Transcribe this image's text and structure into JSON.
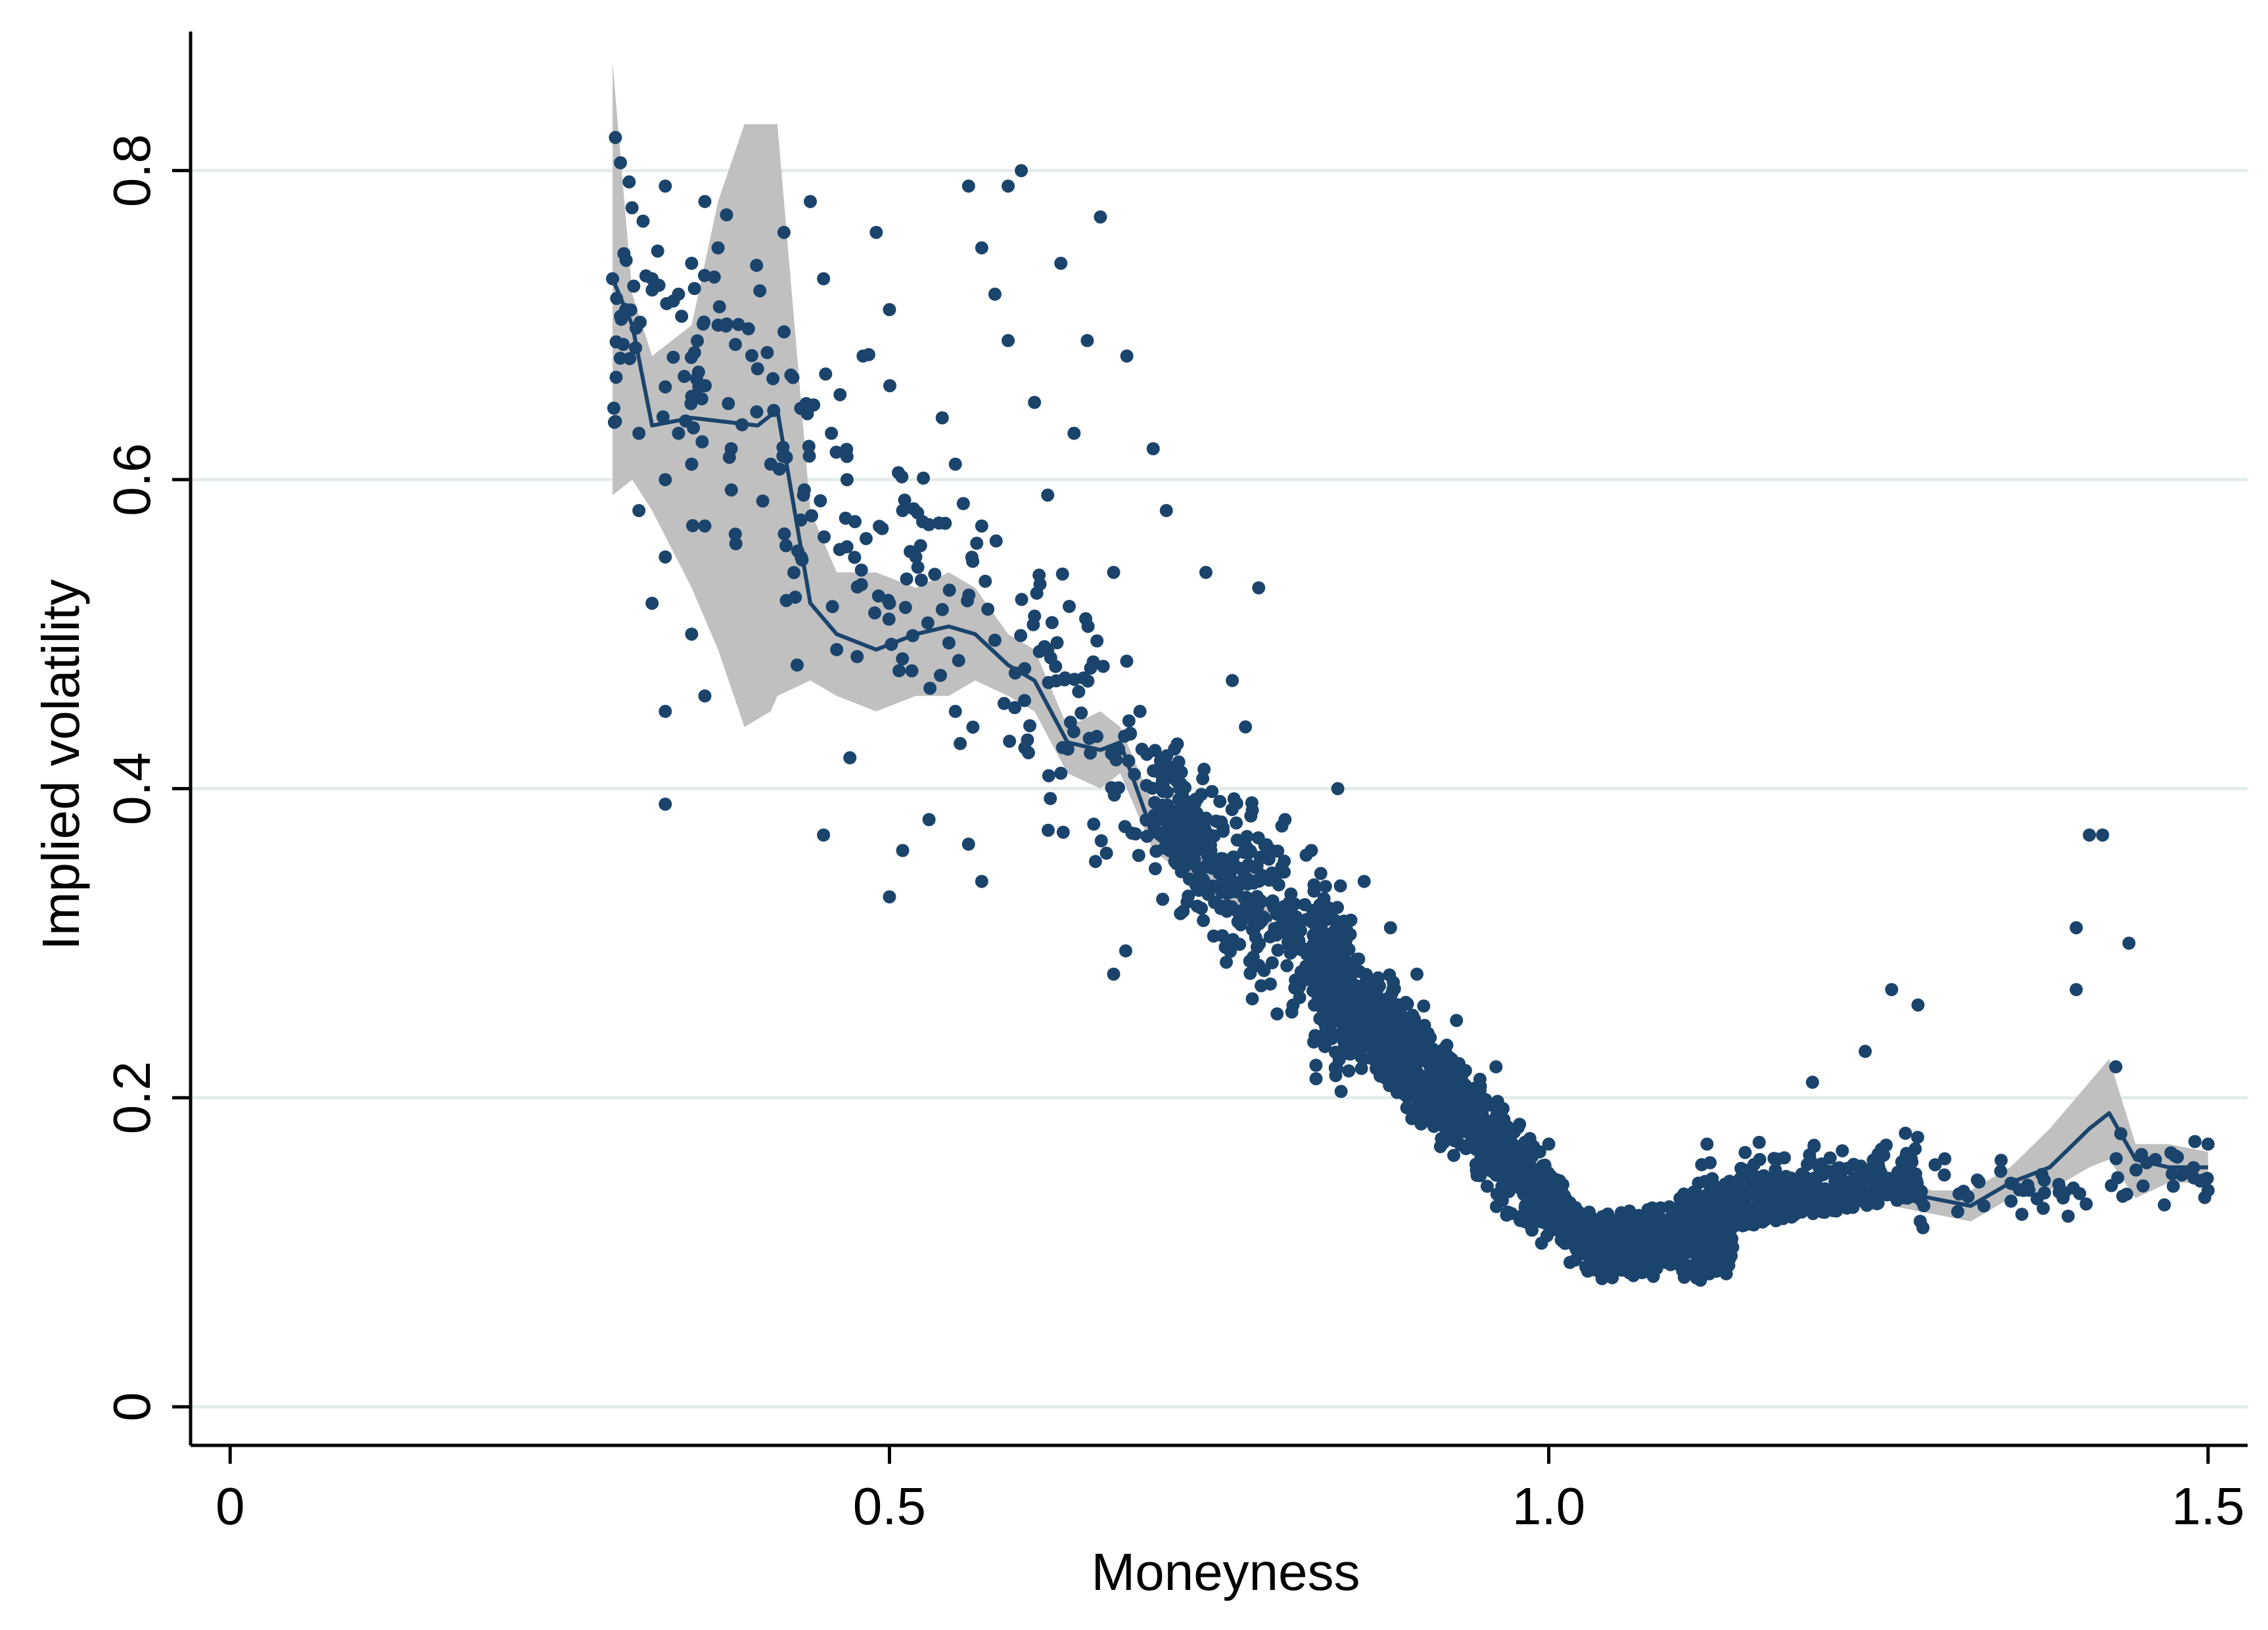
{
  "colors": {
    "points": "#1b446c",
    "line": "#1b446c",
    "band": "#c0c0c0",
    "grid": "#e3ece9",
    "axis": "#000000"
  },
  "chart_data": {
    "type": "scatter",
    "title": "",
    "xlabel": "Moneyness",
    "ylabel": "Implied volatility",
    "xlim": [
      -0.03,
      1.53
    ],
    "ylim": [
      -0.025,
      0.89
    ],
    "xticks": [
      {
        "value": 0,
        "label": "0"
      },
      {
        "value": 0.5,
        "label": "0.5"
      },
      {
        "value": 1.0,
        "label": "1.0"
      },
      {
        "value": 1.5,
        "label": "1.5"
      }
    ],
    "yticks": [
      {
        "value": 0,
        "label": "0"
      },
      {
        "value": 0.2,
        "label": "0.2"
      },
      {
        "value": 0.4,
        "label": "0.4"
      },
      {
        "value": 0.6,
        "label": "0.6"
      },
      {
        "value": 0.8,
        "label": "0.8"
      }
    ],
    "grid": "horizontal",
    "legend": "none",
    "series": [
      {
        "kind": "scatter",
        "description_x_range": [
          0.29,
          1.5
        ],
        "approx_point_count": 2200,
        "sample_points": [
          [
            0.29,
            0.73
          ],
          [
            0.3,
            0.71
          ],
          [
            0.31,
            0.63
          ],
          [
            0.31,
            0.58
          ],
          [
            0.32,
            0.73
          ],
          [
            0.32,
            0.52
          ],
          [
            0.33,
            0.79
          ],
          [
            0.33,
            0.66
          ],
          [
            0.33,
            0.6
          ],
          [
            0.33,
            0.55
          ],
          [
            0.33,
            0.45
          ],
          [
            0.33,
            0.39
          ],
          [
            0.34,
            0.72
          ],
          [
            0.34,
            0.63
          ],
          [
            0.35,
            0.5
          ],
          [
            0.35,
            0.74
          ],
          [
            0.35,
            0.61
          ],
          [
            0.36,
            0.78
          ],
          [
            0.36,
            0.57
          ],
          [
            0.36,
            0.46
          ],
          [
            0.37,
            0.75
          ],
          [
            0.37,
            0.7
          ],
          [
            0.38,
            0.62
          ],
          [
            0.41,
            0.61
          ],
          [
            0.42,
            0.76
          ],
          [
            0.43,
            0.48
          ],
          [
            0.44,
            0.78
          ],
          [
            0.45,
            0.73
          ],
          [
            0.45,
            0.37
          ],
          [
            0.46,
            0.49
          ],
          [
            0.47,
            0.42
          ],
          [
            0.48,
            0.68
          ],
          [
            0.49,
            0.76
          ],
          [
            0.5,
            0.71
          ],
          [
            0.5,
            0.52
          ],
          [
            0.5,
            0.33
          ],
          [
            0.51,
            0.58
          ],
          [
            0.51,
            0.36
          ],
          [
            0.52,
            0.55
          ],
          [
            0.53,
            0.38
          ],
          [
            0.54,
            0.64
          ],
          [
            0.55,
            0.61
          ],
          [
            0.55,
            0.45
          ],
          [
            0.56,
            0.79
          ],
          [
            0.57,
            0.75
          ],
          [
            0.57,
            0.57
          ],
          [
            0.57,
            0.34
          ],
          [
            0.58,
            0.72
          ],
          [
            0.59,
            0.79
          ],
          [
            0.59,
            0.69
          ],
          [
            0.6,
            0.8
          ],
          [
            0.61,
            0.65
          ],
          [
            0.62,
            0.59
          ],
          [
            0.62,
            0.49
          ],
          [
            0.63,
            0.74
          ],
          [
            0.63,
            0.41
          ],
          [
            0.64,
            0.63
          ],
          [
            0.65,
            0.69
          ],
          [
            0.66,
            0.77
          ],
          [
            0.67,
            0.54
          ],
          [
            0.67,
            0.28
          ],
          [
            0.68,
            0.68
          ],
          [
            0.69,
            0.45
          ],
          [
            0.7,
            0.62
          ],
          [
            0.71,
            0.58
          ],
          [
            0.72,
            0.4
          ],
          [
            0.74,
            0.54
          ],
          [
            0.76,
            0.47
          ],
          [
            0.77,
            0.44
          ],
          [
            0.78,
            0.53
          ],
          [
            0.8,
            0.38
          ],
          [
            0.82,
            0.36
          ],
          [
            0.84,
            0.4
          ],
          [
            0.86,
            0.34
          ],
          [
            0.88,
            0.31
          ],
          [
            0.9,
            0.28
          ],
          [
            0.93,
            0.25
          ],
          [
            0.96,
            0.22
          ],
          [
            1.0,
            0.17
          ],
          [
            1.03,
            0.1
          ],
          [
            1.05,
            0.09
          ],
          [
            1.08,
            0.12
          ],
          [
            1.12,
            0.17
          ],
          [
            1.16,
            0.16
          ],
          [
            1.2,
            0.21
          ],
          [
            1.24,
            0.23
          ],
          [
            1.26,
            0.27
          ],
          [
            1.28,
            0.26
          ],
          [
            1.3,
            0.15
          ],
          [
            1.33,
            0.13
          ],
          [
            1.36,
            0.14
          ],
          [
            1.4,
            0.31
          ],
          [
            1.4,
            0.27
          ],
          [
            1.41,
            0.37
          ],
          [
            1.42,
            0.37
          ],
          [
            1.43,
            0.22
          ],
          [
            1.44,
            0.3
          ],
          [
            1.46,
            0.16
          ],
          [
            1.48,
            0.15
          ],
          [
            1.5,
            0.17
          ],
          [
            1.5,
            0.14
          ]
        ]
      },
      {
        "kind": "line",
        "x": [
          0.29,
          0.305,
          0.32,
          0.35,
          0.4,
          0.415,
          0.44,
          0.46,
          0.49,
          0.52,
          0.545,
          0.565,
          0.59,
          0.61,
          0.635,
          0.66,
          0.675,
          0.7,
          0.73,
          0.76,
          0.79
        ],
        "y": [
          0.73,
          0.7,
          0.635,
          0.64,
          0.635,
          0.645,
          0.52,
          0.5,
          0.49,
          0.5,
          0.505,
          0.5,
          0.48,
          0.47,
          0.43,
          0.425,
          0.43,
          0.37,
          0.35,
          0.325,
          0.315
        ]
      },
      {
        "kind": "line",
        "x": [
          1.26,
          1.29,
          1.32,
          1.35,
          1.38,
          1.41,
          1.425,
          1.445,
          1.47,
          1.5
        ],
        "y": [
          0.14,
          0.135,
          0.13,
          0.145,
          0.155,
          0.18,
          0.19,
          0.16,
          0.155,
          0.155
        ]
      },
      {
        "kind": "band",
        "x": [
          0.29,
          0.305,
          0.32,
          0.35,
          0.37,
          0.39,
          0.41,
          0.415,
          0.44,
          0.46,
          0.49,
          0.52,
          0.545,
          0.565,
          0.59,
          0.61,
          0.635,
          0.66,
          0.675,
          0.7,
          0.73,
          0.76,
          0.79
        ],
        "upper": [
          0.87,
          0.72,
          0.68,
          0.7,
          0.78,
          0.83,
          0.83,
          0.83,
          0.58,
          0.54,
          0.54,
          0.53,
          0.54,
          0.53,
          0.5,
          0.49,
          0.44,
          0.45,
          0.44,
          0.39,
          0.37,
          0.34,
          0.32
        ],
        "lower": [
          0.59,
          0.6,
          0.58,
          0.53,
          0.49,
          0.44,
          0.45,
          0.46,
          0.47,
          0.46,
          0.45,
          0.46,
          0.46,
          0.47,
          0.46,
          0.45,
          0.41,
          0.4,
          0.41,
          0.36,
          0.34,
          0.32,
          0.31
        ]
      },
      {
        "kind": "band",
        "x": [
          1.26,
          1.29,
          1.32,
          1.35,
          1.38,
          1.41,
          1.425,
          1.445,
          1.47,
          1.5
        ],
        "upper": [
          0.15,
          0.14,
          0.14,
          0.155,
          0.18,
          0.21,
          0.225,
          0.17,
          0.17,
          0.165
        ],
        "lower": [
          0.13,
          0.125,
          0.12,
          0.135,
          0.14,
          0.155,
          0.16,
          0.135,
          0.145,
          0.145
        ]
      }
    ]
  }
}
